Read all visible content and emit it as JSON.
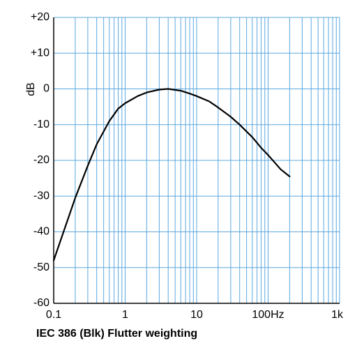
{
  "chart_data": {
    "type": "line",
    "title": "IEC 386 (Blk) Flutter weighting",
    "xlabel": "",
    "ylabel": "dB",
    "x_scale": "log",
    "xlim": [
      0.1,
      1000
    ],
    "ylim": [
      -60,
      20
    ],
    "x_tick_values": [
      0.1,
      1,
      10,
      100,
      1000
    ],
    "x_tick_labels": [
      "0.1",
      "1",
      "10",
      "100Hz",
      "1k"
    ],
    "y_tick_values": [
      20,
      10,
      0,
      -10,
      -20,
      -30,
      -40,
      -50,
      -60
    ],
    "y_tick_labels": [
      "+20",
      "+10",
      "0",
      "-10",
      "-20",
      "-30",
      "-40",
      "-50",
      "-60"
    ],
    "grid": true,
    "grid_color": "#5aa8e0",
    "line_color": "#000000",
    "series": [
      {
        "x": [
          0.1,
          0.2,
          0.3,
          0.4,
          0.6,
          0.8,
          1,
          1.5,
          2,
          3,
          4,
          6,
          8,
          10,
          15,
          20,
          30,
          40,
          60,
          80,
          100,
          150,
          200
        ],
        "y": [
          -48,
          -30.5,
          -21.5,
          -15.5,
          -9,
          -5.5,
          -4,
          -2,
          -1,
          -0.2,
          0,
          -0.5,
          -1.3,
          -2,
          -3.5,
          -5.2,
          -7.8,
          -10,
          -13.5,
          -16.5,
          -18.5,
          -22.5,
          -24.5
        ]
      }
    ]
  }
}
